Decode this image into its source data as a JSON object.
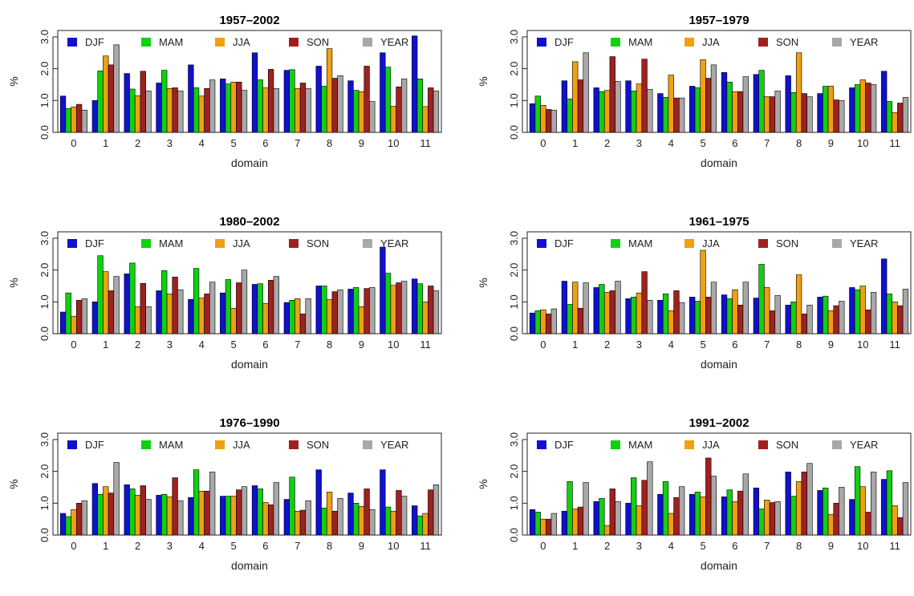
{
  "chart_data": [
    {
      "type": "bar",
      "title": "1957–2002",
      "xlabel": "domain",
      "ylabel": "%",
      "ylim": [
        0,
        3.2
      ],
      "yticks": [
        "0.0",
        "1.0",
        "2.0",
        "3.0"
      ],
      "categories": [
        "0",
        "1",
        "2",
        "3",
        "4",
        "5",
        "6",
        "7",
        "8",
        "9",
        "10",
        "11"
      ],
      "legend_position": "top",
      "series": [
        {
          "name": "DJF",
          "color": "#1010d0",
          "values": [
            1.14,
            1.0,
            1.85,
            1.55,
            2.12,
            1.68,
            2.5,
            1.95,
            2.08,
            1.62,
            2.5,
            3.03
          ]
        },
        {
          "name": "MAM",
          "color": "#10d010",
          "values": [
            0.75,
            1.93,
            1.36,
            1.95,
            1.4,
            1.52,
            1.65,
            1.97,
            1.45,
            1.32,
            2.05,
            1.68
          ]
        },
        {
          "name": "JJA",
          "color": "#f0a010",
          "values": [
            0.8,
            2.4,
            1.15,
            1.38,
            1.14,
            1.58,
            1.4,
            1.38,
            2.63,
            1.28,
            0.82,
            0.81
          ]
        },
        {
          "name": "SON",
          "color": "#a02020",
          "values": [
            0.88,
            2.12,
            1.92,
            1.4,
            1.38,
            1.58,
            1.98,
            1.55,
            1.7,
            2.08,
            1.43,
            1.4
          ]
        },
        {
          "name": "YEAR",
          "color": "#a8a8a8",
          "values": [
            0.7,
            2.75,
            1.3,
            1.3,
            1.65,
            1.32,
            1.38,
            1.38,
            1.78,
            0.97,
            1.68,
            1.3
          ]
        }
      ]
    },
    {
      "type": "bar",
      "title": "1957–1979",
      "xlabel": "domain",
      "ylabel": "%",
      "ylim": [
        0,
        3.2
      ],
      "yticks": [
        "0.0",
        "1.0",
        "2.0",
        "3.0"
      ],
      "categories": [
        "0",
        "1",
        "2",
        "3",
        "4",
        "5",
        "6",
        "7",
        "8",
        "9",
        "10",
        "11"
      ],
      "legend_position": "top",
      "series": [
        {
          "name": "DJF",
          "color": "#1010d0",
          "values": [
            0.9,
            1.62,
            1.4,
            1.62,
            1.22,
            1.45,
            1.88,
            1.82,
            1.78,
            1.22,
            1.4,
            1.92
          ]
        },
        {
          "name": "MAM",
          "color": "#10d010",
          "values": [
            1.14,
            1.05,
            1.28,
            1.3,
            1.1,
            1.4,
            1.58,
            1.95,
            1.25,
            1.45,
            1.5,
            0.97
          ]
        },
        {
          "name": "JJA",
          "color": "#f0a010",
          "values": [
            0.85,
            2.22,
            1.32,
            1.52,
            1.8,
            2.28,
            1.28,
            1.12,
            2.5,
            1.45,
            1.65,
            0.62
          ]
        },
        {
          "name": "SON",
          "color": "#a02020",
          "values": [
            0.72,
            1.65,
            2.38,
            2.3,
            1.08,
            1.7,
            1.28,
            1.12,
            1.22,
            1.02,
            1.55,
            0.92
          ]
        },
        {
          "name": "YEAR",
          "color": "#a8a8a8",
          "values": [
            0.7,
            2.5,
            1.6,
            1.35,
            1.08,
            2.12,
            1.75,
            1.3,
            1.12,
            1.0,
            1.5,
            1.1
          ]
        }
      ]
    },
    {
      "type": "bar",
      "title": "1980–2002",
      "xlabel": "domain",
      "ylabel": "%",
      "ylim": [
        0,
        3.2
      ],
      "yticks": [
        "0.0",
        "1.0",
        "2.0",
        "3.0"
      ],
      "categories": [
        "0",
        "1",
        "2",
        "3",
        "4",
        "5",
        "6",
        "7",
        "8",
        "9",
        "10",
        "11"
      ],
      "legend_position": "top",
      "series": [
        {
          "name": "DJF",
          "color": "#1010d0",
          "values": [
            0.68,
            1.0,
            1.88,
            1.35,
            1.08,
            1.28,
            1.55,
            0.98,
            1.5,
            1.4,
            2.72,
            1.72
          ]
        },
        {
          "name": "MAM",
          "color": "#10d010",
          "values": [
            1.28,
            2.45,
            2.22,
            1.98,
            2.05,
            1.7,
            1.57,
            1.05,
            1.5,
            1.45,
            1.9,
            1.57
          ]
        },
        {
          "name": "JJA",
          "color": "#f0a010",
          "values": [
            0.55,
            1.95,
            0.85,
            1.25,
            1.12,
            0.8,
            0.95,
            1.1,
            1.07,
            0.85,
            1.52,
            1.0
          ]
        },
        {
          "name": "SON",
          "color": "#a02020",
          "values": [
            1.05,
            1.35,
            1.58,
            1.78,
            1.25,
            1.6,
            1.68,
            0.62,
            1.32,
            1.42,
            1.6,
            1.5
          ]
        },
        {
          "name": "YEAR",
          "color": "#a8a8a8",
          "values": [
            1.1,
            1.8,
            0.85,
            1.38,
            1.62,
            2.0,
            1.8,
            1.1,
            1.38,
            1.45,
            1.65,
            1.35
          ]
        }
      ]
    },
    {
      "type": "bar",
      "title": "1961–1975",
      "xlabel": "domain",
      "ylabel": "%",
      "ylim": [
        0,
        3.2
      ],
      "yticks": [
        "0.0",
        "1.0",
        "2.0",
        "3.0"
      ],
      "categories": [
        "0",
        "1",
        "2",
        "3",
        "4",
        "5",
        "6",
        "7",
        "8",
        "9",
        "10",
        "11"
      ],
      "legend_position": "top",
      "series": [
        {
          "name": "DJF",
          "color": "#1010d0",
          "values": [
            0.65,
            1.65,
            1.45,
            1.1,
            1.05,
            1.15,
            1.22,
            1.12,
            0.9,
            1.15,
            1.45,
            2.35
          ]
        },
        {
          "name": "MAM",
          "color": "#10d010",
          "values": [
            0.72,
            0.92,
            1.55,
            1.15,
            1.25,
            1.02,
            1.1,
            2.18,
            1.0,
            1.18,
            1.38,
            1.25
          ]
        },
        {
          "name": "JJA",
          "color": "#f0a010",
          "values": [
            0.75,
            1.62,
            1.3,
            1.28,
            0.72,
            2.62,
            1.38,
            1.45,
            1.85,
            0.72,
            1.5,
            1.0
          ]
        },
        {
          "name": "SON",
          "color": "#a02020",
          "values": [
            0.62,
            0.8,
            1.35,
            1.95,
            1.35,
            1.15,
            0.9,
            0.72,
            0.62,
            0.88,
            0.75,
            0.88
          ]
        },
        {
          "name": "YEAR",
          "color": "#a8a8a8",
          "values": [
            0.78,
            1.6,
            1.65,
            1.05,
            0.98,
            1.62,
            1.62,
            1.2,
            0.9,
            1.02,
            1.3,
            1.4
          ]
        }
      ]
    },
    {
      "type": "bar",
      "title": "1976–1990",
      "xlabel": "domain",
      "ylabel": "%",
      "ylim": [
        0,
        3.2
      ],
      "yticks": [
        "0.0",
        "1.0",
        "2.0",
        "3.0"
      ],
      "categories": [
        "0",
        "1",
        "2",
        "3",
        "4",
        "5",
        "6",
        "7",
        "8",
        "9",
        "10",
        "11"
      ],
      "legend_position": "top",
      "series": [
        {
          "name": "DJF",
          "color": "#1010d0",
          "values": [
            0.68,
            1.62,
            1.58,
            1.25,
            1.18,
            1.22,
            1.55,
            1.12,
            2.05,
            1.32,
            2.05,
            0.92
          ]
        },
        {
          "name": "MAM",
          "color": "#10d010",
          "values": [
            0.58,
            1.28,
            1.45,
            1.28,
            2.05,
            1.22,
            1.45,
            1.82,
            0.85,
            1.0,
            0.88,
            0.6
          ]
        },
        {
          "name": "JJA",
          "color": "#f0a010",
          "values": [
            0.8,
            1.52,
            1.25,
            1.2,
            1.38,
            1.22,
            1.02,
            0.75,
            1.35,
            0.9,
            0.75,
            0.68
          ]
        },
        {
          "name": "SON",
          "color": "#a02020",
          "values": [
            1.0,
            1.32,
            1.55,
            1.8,
            1.38,
            1.42,
            0.95,
            0.78,
            0.75,
            1.45,
            1.4,
            1.42
          ]
        },
        {
          "name": "YEAR",
          "color": "#a8a8a8",
          "values": [
            1.08,
            2.28,
            1.12,
            1.08,
            1.98,
            1.52,
            1.65,
            1.08,
            1.15,
            0.8,
            1.22,
            1.58
          ]
        }
      ]
    },
    {
      "type": "bar",
      "title": "1991–2002",
      "xlabel": "domain",
      "ylabel": "%",
      "ylim": [
        0,
        3.2
      ],
      "yticks": [
        "0.0",
        "1.0",
        "2.0",
        "3.0"
      ],
      "categories": [
        "0",
        "1",
        "2",
        "3",
        "4",
        "5",
        "6",
        "7",
        "8",
        "9",
        "10",
        "11"
      ],
      "legend_position": "top",
      "series": [
        {
          "name": "DJF",
          "color": "#1010d0",
          "values": [
            0.8,
            0.75,
            1.05,
            1.0,
            1.28,
            1.28,
            1.2,
            1.48,
            1.98,
            1.4,
            1.12,
            1.75
          ]
        },
        {
          "name": "MAM",
          "color": "#10d010",
          "values": [
            0.72,
            1.68,
            1.15,
            1.8,
            1.68,
            1.35,
            1.42,
            0.82,
            1.22,
            1.48,
            2.15,
            2.02
          ]
        },
        {
          "name": "JJA",
          "color": "#f0a010",
          "values": [
            0.5,
            0.82,
            0.3,
            0.92,
            0.68,
            1.2,
            1.05,
            1.1,
            1.68,
            0.65,
            1.52,
            0.92
          ]
        },
        {
          "name": "SON",
          "color": "#a02020",
          "values": [
            0.5,
            0.88,
            1.45,
            1.72,
            1.18,
            2.42,
            1.38,
            1.02,
            1.98,
            1.0,
            0.72,
            0.55
          ]
        },
        {
          "name": "YEAR",
          "color": "#a8a8a8",
          "values": [
            0.68,
            1.65,
            1.05,
            2.3,
            1.52,
            1.85,
            1.92,
            1.05,
            2.25,
            1.5,
            1.98,
            1.65
          ]
        }
      ]
    }
  ]
}
